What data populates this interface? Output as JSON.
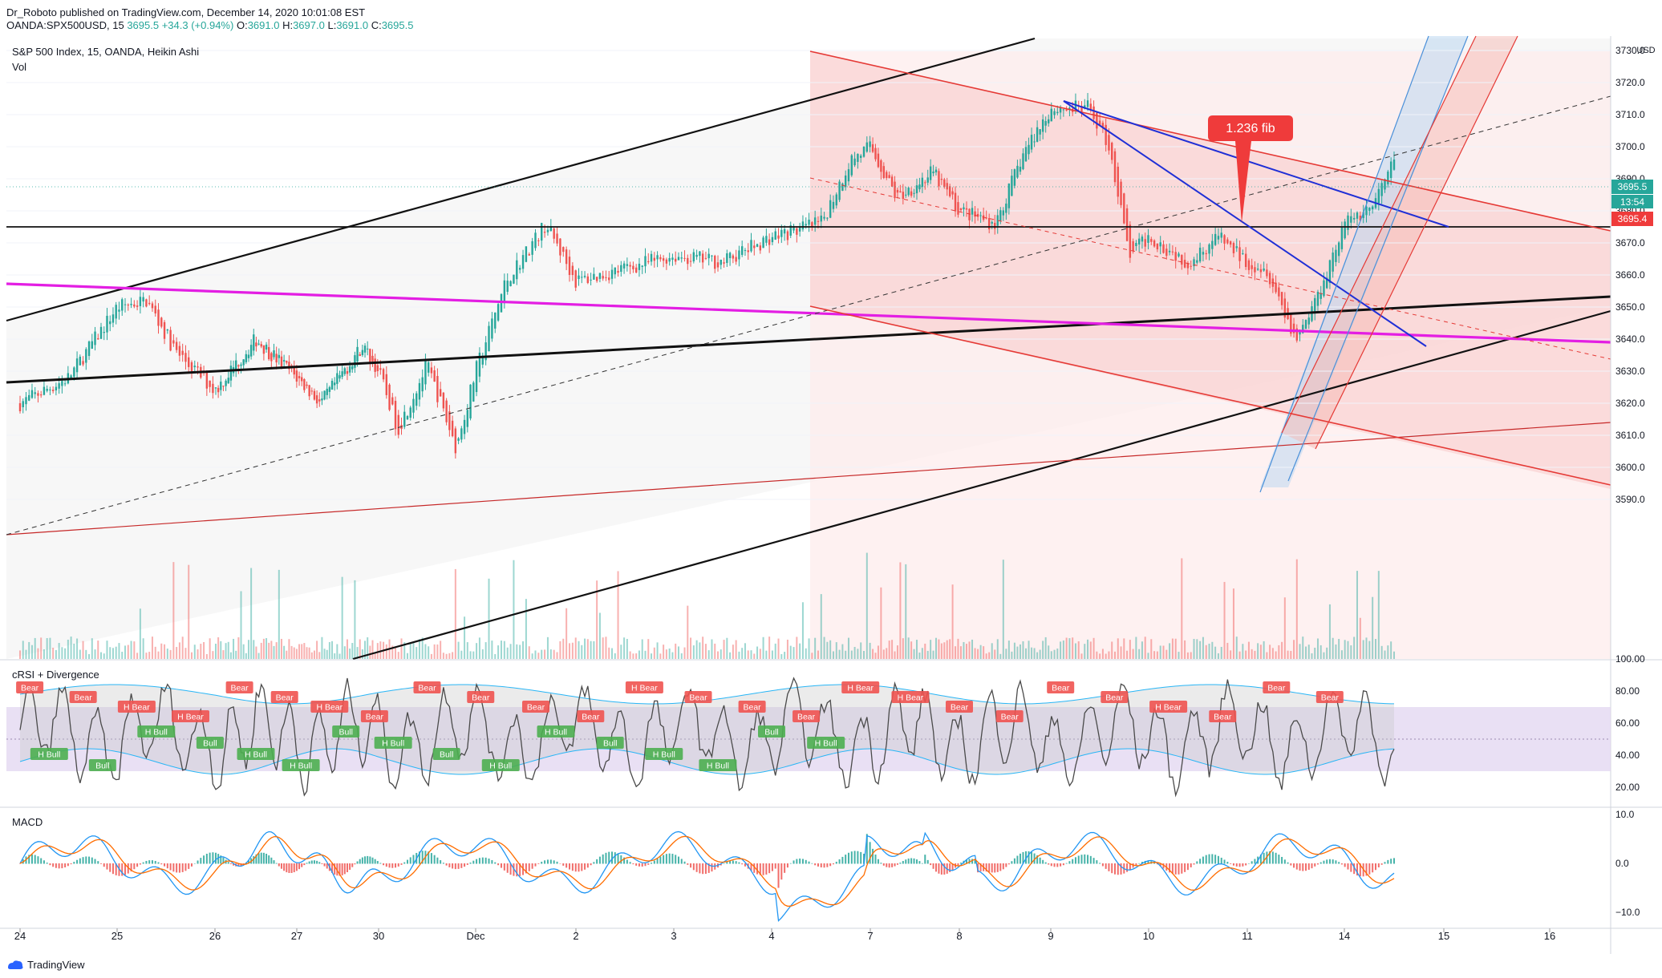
{
  "header": {
    "author_line": "Dr_Roboto published on TradingView.com, December 14, 2020 10:01:08 EST",
    "symbol": "OANDA:SPX500USD, 15",
    "price": "3695.5",
    "change": "+34.3 (+0.94%)",
    "o_label": "O:",
    "o": "3691.0",
    "h_label": "H:",
    "h": "3697.0",
    "l_label": "L:",
    "l": "3691.0",
    "c_label": "C:",
    "c": "3695.5"
  },
  "main_pane": {
    "title": "S&P 500 Index, 15, OANDA, Heikin Ashi",
    "subtitle": "Vol",
    "annotation": "1.236 fib",
    "price_labels": {
      "last": "3695.5",
      "countdown": "13:54",
      "level": "3695.4"
    },
    "currency": "USD"
  },
  "crsi_pane": {
    "title": "cRSI + Divergence"
  },
  "macd_pane": {
    "title": "MACD"
  },
  "footer": {
    "brand": "TradingView"
  },
  "colors": {
    "bull": "#26a69a",
    "bear": "#ef5350",
    "magenta": "#e31ee3",
    "blue_line": "#1f2fd6",
    "channel_red": "#e53935",
    "crsi_line": "#4a4a4a",
    "crsi_band": "#29b6f6",
    "macd_line": "#2196f3",
    "signal_line": "#ff6d00"
  },
  "chart_data": [
    {
      "type": "candlestick",
      "style": "Heikin Ashi",
      "title": "S&P 500 Index, 15, OANDA, Heikin Ashi",
      "x_tick_labels": [
        "24",
        "25",
        "26",
        "27",
        "30",
        "Dec",
        "2",
        "3",
        "4",
        "7",
        "8",
        "9",
        "10",
        "11",
        "14",
        "15",
        "16"
      ],
      "y_ticks": [
        3590,
        3600,
        3610,
        3620,
        3630,
        3640,
        3650,
        3660,
        3670,
        3680,
        3690,
        3700,
        3710,
        3720,
        3730
      ],
      "y_tick_labels": [
        "3590.0",
        "3600.0",
        "3610.0",
        "3620.0",
        "3630.0",
        "3640.0",
        "3650.0",
        "3660.0",
        "3670.0",
        "3680.0",
        "3690.0",
        "3700.0",
        "3710.0",
        "3720.0",
        "3730.0"
      ],
      "ylim": [
        3584,
        3731
      ],
      "close_path": [
        {
          "x": 0,
          "y": 3620
        },
        {
          "x": 0.5,
          "y": 3628
        },
        {
          "x": 1,
          "y": 3650
        },
        {
          "x": 1.3,
          "y": 3652
        },
        {
          "x": 1.6,
          "y": 3636
        },
        {
          "x": 2,
          "y": 3624
        },
        {
          "x": 2.5,
          "y": 3640
        },
        {
          "x": 3,
          "y": 3628
        },
        {
          "x": 3.3,
          "y": 3620
        },
        {
          "x": 3.8,
          "y": 3638
        },
        {
          "x": 4,
          "y": 3630
        },
        {
          "x": 4.2,
          "y": 3612
        },
        {
          "x": 4.5,
          "y": 3632
        },
        {
          "x": 4.8,
          "y": 3606
        },
        {
          "x": 5,
          "y": 3630
        },
        {
          "x": 5.3,
          "y": 3658
        },
        {
          "x": 5.7,
          "y": 3676
        },
        {
          "x": 6,
          "y": 3658
        },
        {
          "x": 6.5,
          "y": 3662
        },
        {
          "x": 7,
          "y": 3666
        },
        {
          "x": 7.5,
          "y": 3664
        },
        {
          "x": 8,
          "y": 3672
        },
        {
          "x": 8.5,
          "y": 3676
        },
        {
          "x": 8.8,
          "y": 3696
        },
        {
          "x": 9,
          "y": 3700
        },
        {
          "x": 9.3,
          "y": 3684
        },
        {
          "x": 9.7,
          "y": 3692
        },
        {
          "x": 10,
          "y": 3680
        },
        {
          "x": 10.4,
          "y": 3676
        },
        {
          "x": 10.7,
          "y": 3698
        },
        {
          "x": 11,
          "y": 3712
        },
        {
          "x": 11.4,
          "y": 3712
        },
        {
          "x": 11.6,
          "y": 3700
        },
        {
          "x": 11.8,
          "y": 3666
        },
        {
          "x": 12,
          "y": 3672
        },
        {
          "x": 12.4,
          "y": 3664
        },
        {
          "x": 12.7,
          "y": 3672
        },
        {
          "x": 13,
          "y": 3664
        },
        {
          "x": 13.2,
          "y": 3662
        },
        {
          "x": 13.5,
          "y": 3640
        },
        {
          "x": 13.7,
          "y": 3652
        },
        {
          "x": 14,
          "y": 3676
        },
        {
          "x": 14.3,
          "y": 3682
        },
        {
          "x": 14.5,
          "y": 3695.5
        }
      ],
      "volume_note": "volume histogram beneath price"
    },
    {
      "type": "line",
      "title": "cRSI + Divergence",
      "y_ticks": [
        20,
        40,
        60,
        80,
        100
      ],
      "y_tick_labels": [
        "20.00",
        "40.00",
        "60.00",
        "80.00",
        "100.00"
      ],
      "ylim": [
        10,
        100
      ],
      "band": [
        30,
        70
      ],
      "divergence_labels": [
        "Bear",
        "Bear",
        "H Bear",
        "H Bear",
        "Bear",
        "Bear",
        "H Bear",
        "Bear",
        "Bear",
        "Bear",
        "Bear",
        "Bear",
        "H Bear",
        "Bear",
        "Bear",
        "Bear",
        "H Bear",
        "H Bear",
        "Bear",
        "Bear",
        "Bear",
        "Bear",
        "H Bear",
        "Bear",
        "Bear",
        "Bear",
        "H Bull",
        "Bull",
        "H Bull",
        "Bull",
        "H Bull",
        "H Bull",
        "Bull",
        "H Bull",
        "Bull",
        "H Bull",
        "H Bull",
        "Bull",
        "H Bull",
        "H Bull",
        "Bull",
        "H Bull"
      ]
    },
    {
      "type": "line",
      "title": "MACD",
      "y_ticks": [
        -10,
        0,
        10
      ],
      "y_tick_labels": [
        "−10.0",
        "0.0",
        "10.0"
      ],
      "ylim": [
        -12,
        12
      ],
      "series": [
        {
          "name": "MACD"
        },
        {
          "name": "Signal"
        },
        {
          "name": "Histogram"
        }
      ]
    }
  ]
}
